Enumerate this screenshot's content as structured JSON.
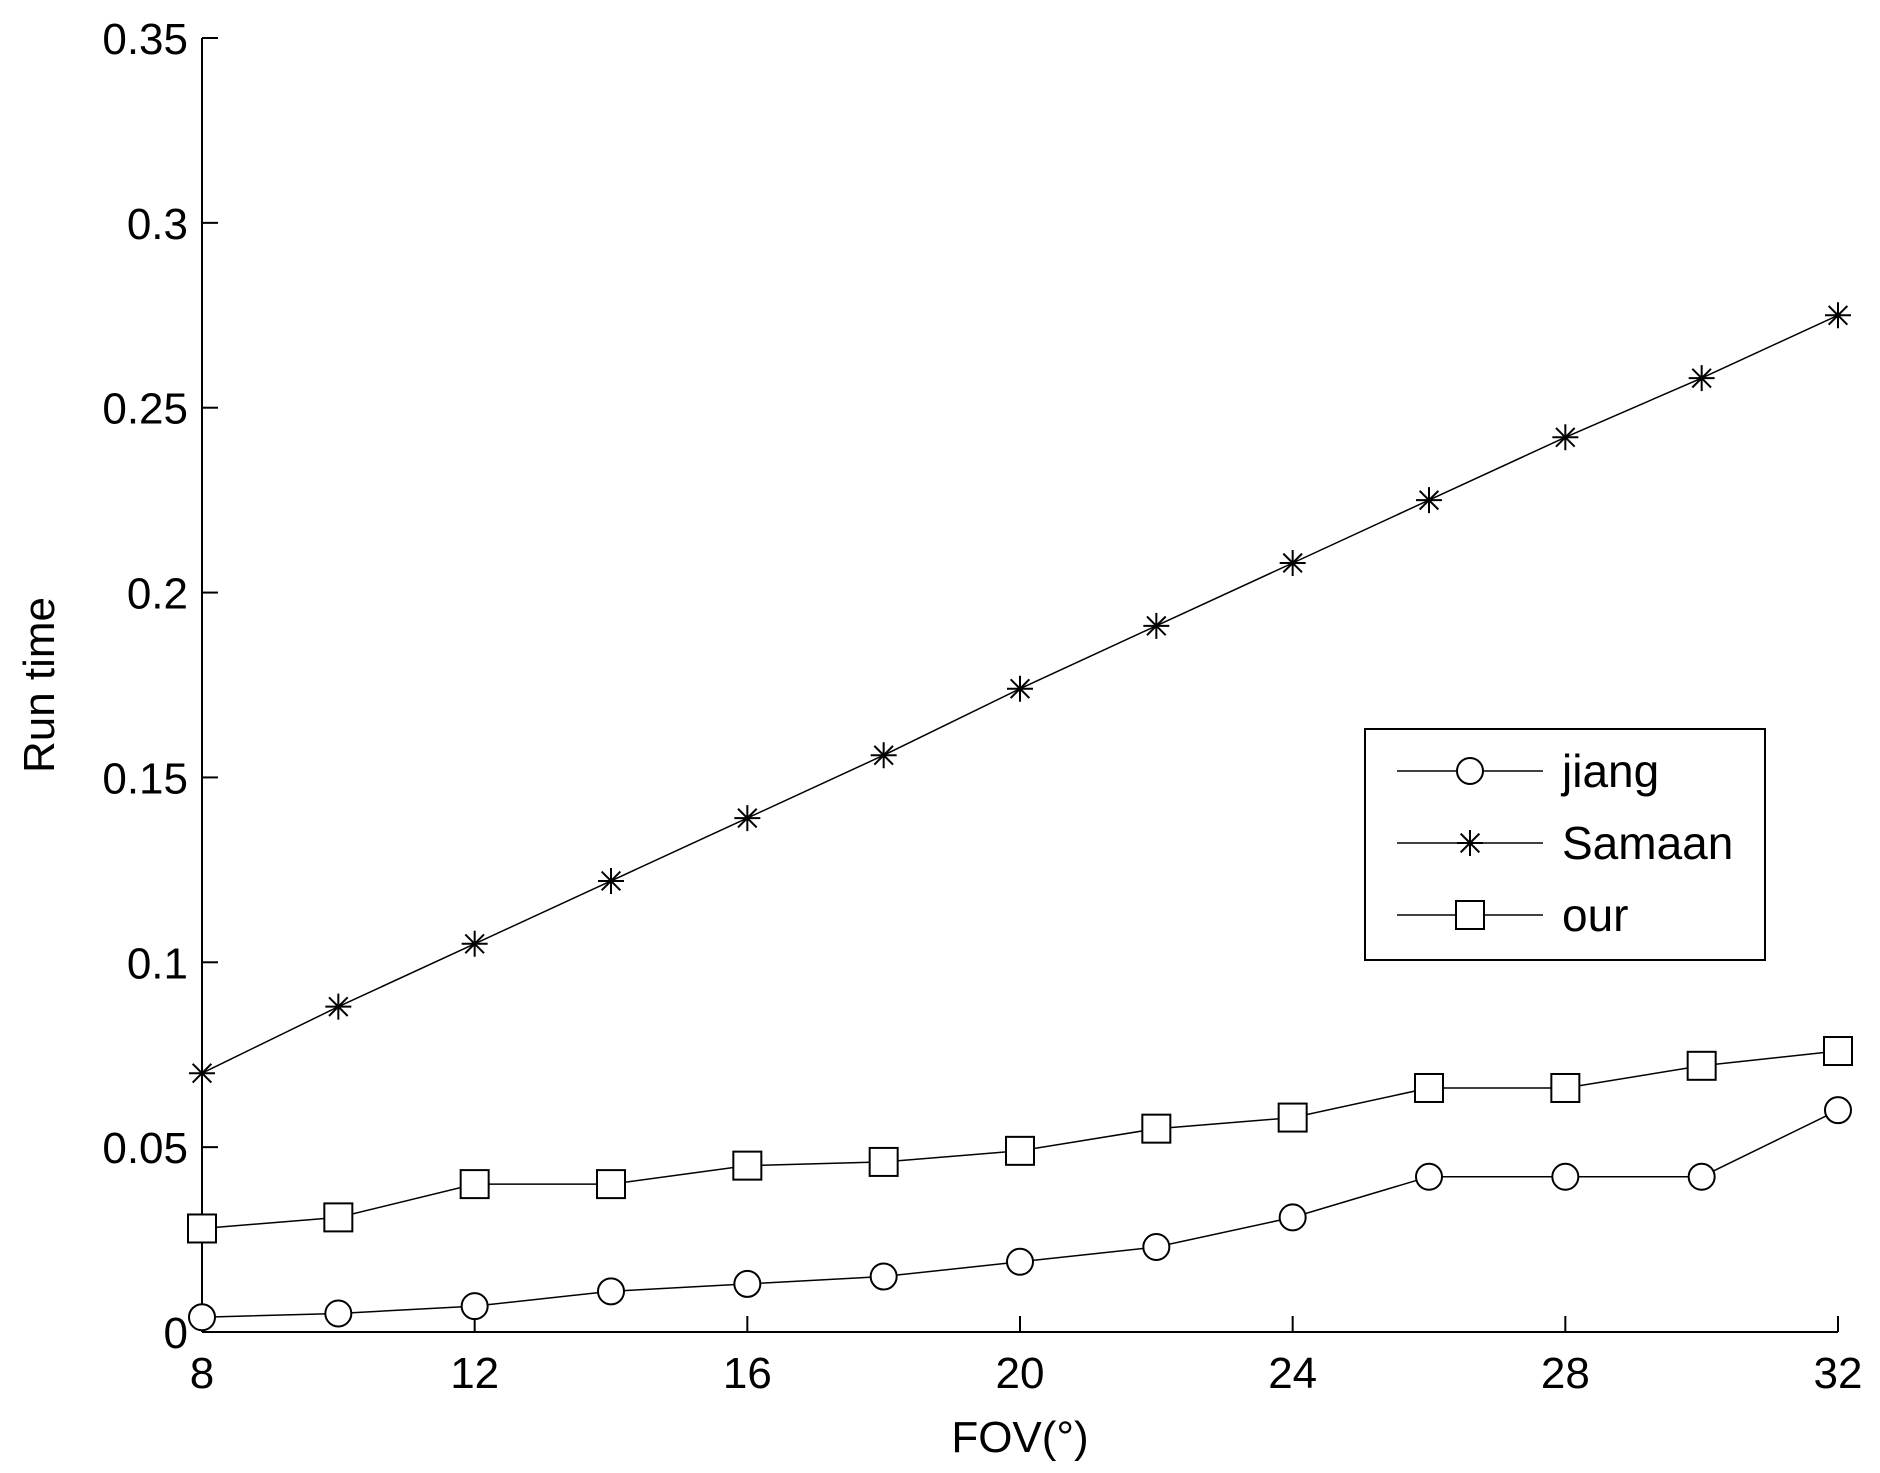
{
  "chart_data": {
    "type": "line",
    "title": "",
    "xlabel": "FOV(°)",
    "ylabel": "Run time",
    "xlim": [
      8,
      32
    ],
    "ylim": [
      0,
      0.35
    ],
    "xticks": [
      8,
      12,
      16,
      20,
      24,
      28,
      32
    ],
    "xtick_labels": [
      "8",
      "12",
      "16",
      "20",
      "24",
      "28",
      "32"
    ],
    "yticks": [
      0,
      0.05,
      0.1,
      0.15,
      0.2,
      0.25,
      0.3,
      0.35
    ],
    "ytick_labels": [
      "0",
      "0.05",
      "0.1",
      "0.15",
      "0.2",
      "0.25",
      "0.3",
      "0.35"
    ],
    "grid": false,
    "legend_position": "center-right",
    "x": [
      8,
      10,
      12,
      14,
      16,
      18,
      20,
      22,
      24,
      26,
      28,
      30,
      32
    ],
    "series": [
      {
        "name": "jiang",
        "marker": "circle",
        "color": "#000000",
        "values": [
          0.004,
          0.005,
          0.007,
          0.011,
          0.013,
          0.015,
          0.019,
          0.023,
          0.031,
          0.042,
          0.042,
          0.042,
          0.06
        ]
      },
      {
        "name": "Samaan",
        "marker": "star",
        "color": "#000000",
        "values": [
          0.07,
          0.088,
          0.105,
          0.122,
          0.139,
          0.156,
          0.174,
          0.191,
          0.208,
          0.225,
          0.242,
          0.258,
          0.275
        ]
      },
      {
        "name": "our",
        "marker": "square",
        "color": "#000000",
        "values": [
          0.028,
          0.031,
          0.04,
          0.04,
          0.045,
          0.046,
          0.049,
          0.055,
          0.058,
          0.066,
          0.066,
          0.072,
          0.076
        ]
      }
    ]
  }
}
